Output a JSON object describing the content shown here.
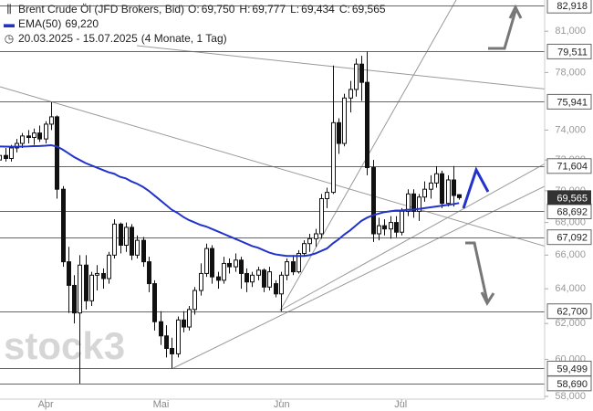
{
  "chart_data": {
    "type": "candlestick",
    "title": "Brent Crude Öl (JFD Brokers, Bid)",
    "ohlc": [
      {
        "key": "O:",
        "value": "69,750"
      },
      {
        "key": "H:",
        "value": "69,777"
      },
      {
        "key": "L:",
        "value": "69,434"
      },
      {
        "key": "C:",
        "value": "69,565"
      }
    ],
    "ema": {
      "name": "EMA(50)",
      "value_label": "69,220",
      "color": "#2233cc",
      "values": [
        72900,
        72890,
        72880,
        72880,
        72890,
        72900,
        72920,
        72930,
        72950,
        72980,
        72900,
        72700,
        72450,
        72200,
        72000,
        71800,
        71650,
        71500,
        71350,
        71200,
        71100,
        70900,
        70800,
        70600,
        70450,
        70250,
        70000,
        69700,
        69400,
        69100,
        68800,
        68600,
        68350,
        68150,
        68000,
        67850,
        67750,
        67600,
        67450,
        67300,
        67150,
        67000,
        66850,
        66700,
        66550,
        66450,
        66300,
        66150,
        66050,
        66000,
        65950,
        65950,
        65950,
        65950,
        66000,
        66100,
        66250,
        66400,
        66700,
        66950,
        67250,
        67500,
        67800,
        68100,
        68300,
        68450,
        68550,
        68650,
        68700,
        68750,
        68750,
        68800,
        68800,
        68850,
        68900,
        68950,
        69000,
        69050,
        69100,
        69150,
        69220
      ]
    },
    "date_range": "20.03.2025 - 15.07.2025",
    "period": "(4 Monate, 1 Tag)",
    "candles": [
      [
        72000,
        72600,
        71700,
        72300
      ],
      [
        72300,
        72800,
        71900,
        72100
      ],
      [
        72100,
        73000,
        71900,
        72800
      ],
      [
        72800,
        73400,
        72500,
        73100
      ],
      [
        73100,
        73800,
        72800,
        73600
      ],
      [
        73600,
        74000,
        73100,
        73500
      ],
      [
        73500,
        74100,
        73000,
        73800
      ],
      [
        73800,
        74300,
        73200,
        73400
      ],
      [
        73400,
        74600,
        73100,
        74400
      ],
      [
        74400,
        75900,
        74000,
        74900
      ],
      [
        74900,
        75000,
        69500,
        70100
      ],
      [
        70100,
        70300,
        65300,
        65600
      ],
      [
        65600,
        66500,
        62600,
        64200
      ],
      [
        64200,
        64800,
        62000,
        62600
      ],
      [
        62600,
        66000,
        58690,
        65400
      ],
      [
        65400,
        66000,
        62800,
        63300
      ],
      [
        63300,
        65000,
        63000,
        64800
      ],
      [
        64800,
        65400,
        63900,
        64900
      ],
      [
        64900,
        65200,
        64000,
        64600
      ],
      [
        64600,
        66200,
        64300,
        66000
      ],
      [
        66000,
        68200,
        65800,
        67900
      ],
      [
        67900,
        68000,
        66100,
        66600
      ],
      [
        66600,
        68000,
        66200,
        67700
      ],
      [
        67700,
        67900,
        65700,
        66000
      ],
      [
        66000,
        67200,
        65800,
        66900
      ],
      [
        66900,
        67100,
        65300,
        65600
      ],
      [
        65600,
        65900,
        63800,
        64300
      ],
      [
        64300,
        64500,
        61600,
        62100
      ],
      [
        62100,
        62700,
        60800,
        61300
      ],
      [
        61300,
        61900,
        60100,
        60600
      ],
      [
        60600,
        61200,
        59499,
        60300
      ],
      [
        60300,
        62400,
        60100,
        62200
      ],
      [
        62200,
        62700,
        61500,
        61800
      ],
      [
        61800,
        63000,
        61600,
        62800
      ],
      [
        62800,
        64100,
        62500,
        63900
      ],
      [
        63900,
        65500,
        63600,
        64900
      ],
      [
        64900,
        66700,
        64700,
        66400
      ],
      [
        66400,
        66600,
        64300,
        64700
      ],
      [
        64700,
        65000,
        64000,
        64500
      ],
      [
        64500,
        65900,
        64300,
        65500
      ],
      [
        65500,
        65800,
        64900,
        65300
      ],
      [
        65300,
        66100,
        65000,
        65700
      ],
      [
        65700,
        65900,
        64000,
        64900
      ],
      [
        64900,
        65200,
        63800,
        64400
      ],
      [
        64400,
        65000,
        64100,
        64800
      ],
      [
        64800,
        65300,
        64500,
        65100
      ],
      [
        65100,
        65200,
        63800,
        64100
      ],
      [
        64100,
        65300,
        63900,
        65000
      ],
      [
        64300,
        64500,
        63500,
        63700
      ],
      [
        63700,
        65000,
        62700,
        64800
      ],
      [
        64800,
        65800,
        64500,
        65600
      ],
      [
        65600,
        66000,
        64800,
        65000
      ],
      [
        65000,
        66300,
        64900,
        66100
      ],
      [
        66100,
        66900,
        65900,
        66700
      ],
      [
        66700,
        67300,
        66200,
        67000
      ],
      [
        67000,
        67600,
        66500,
        67300
      ],
      [
        67300,
        69800,
        67000,
        69500
      ],
      [
        69500,
        70200,
        68900,
        69900
      ],
      [
        69900,
        78500,
        69800,
        74500
      ],
      [
        74500,
        74800,
        72400,
        73100
      ],
      [
        73100,
        76500,
        72900,
        76200
      ],
      [
        76200,
        77400,
        75200,
        76800
      ],
      [
        76800,
        79000,
        76300,
        78600
      ],
      [
        78600,
        79200,
        76000,
        77300
      ],
      [
        77300,
        79511,
        71000,
        71500
      ],
      [
        71500,
        72000,
        66800,
        67300
      ],
      [
        67300,
        68300,
        66900,
        67800
      ],
      [
        67800,
        68200,
        67200,
        67600
      ],
      [
        67600,
        68400,
        67000,
        68000
      ],
      [
        68000,
        68400,
        67092,
        67400
      ],
      [
        67400,
        68900,
        67200,
        68700
      ],
      [
        68700,
        70100,
        68400,
        69800
      ],
      [
        69800,
        70100,
        68300,
        68700
      ],
      [
        68700,
        69800,
        68100,
        69600
      ],
      [
        69600,
        70600,
        69300,
        70100
      ],
      [
        70100,
        71000,
        69500,
        70500
      ],
      [
        70500,
        71600,
        70200,
        71100
      ],
      [
        71100,
        71300,
        68900,
        69200
      ],
      [
        69200,
        71000,
        69000,
        70700
      ],
      [
        70700,
        71604,
        69000,
        69700
      ],
      [
        69750,
        69777,
        69434,
        69565
      ]
    ],
    "log_scale": true,
    "ylim": [
      58000,
      83000
    ],
    "yticks": [
      {
        "value": 58000,
        "label": "58,000"
      },
      {
        "value": 60000,
        "label": "60,000"
      },
      {
        "value": 62000,
        "label": "62,000"
      },
      {
        "value": 64000,
        "label": "64,000"
      },
      {
        "value": 66000,
        "label": "66,000"
      },
      {
        "value": 68000,
        "label": "68,000"
      },
      {
        "value": 70000,
        "label": "70,000"
      },
      {
        "value": 72000,
        "label": "72,000"
      },
      {
        "value": 74000,
        "label": "74,000"
      },
      {
        "value": 78000,
        "label": "78,000"
      },
      {
        "value": 81000,
        "label": "81,000"
      }
    ],
    "xticks": [
      {
        "value": 8,
        "label": "Apr"
      },
      {
        "value": 28,
        "label": "Mai"
      },
      {
        "value": 49,
        "label": "Jun"
      },
      {
        "value": 70,
        "label": "Jul"
      }
    ],
    "levels": [
      {
        "value": 82918,
        "label": "82,918"
      },
      {
        "value": 79511,
        "label": "79,511"
      },
      {
        "value": 75941,
        "label": "75,941"
      },
      {
        "value": 71604,
        "label": "71,604"
      },
      {
        "value": 68692,
        "label": "68,692"
      },
      {
        "value": 67092,
        "label": "67,092"
      },
      {
        "value": 62700,
        "label": "62,700"
      },
      {
        "value": 59499,
        "label": "59,499"
      },
      {
        "value": 58690,
        "label": "58,690"
      }
    ],
    "last": {
      "value": 69565,
      "label": "69,565"
    },
    "watermark": "stock3"
  }
}
